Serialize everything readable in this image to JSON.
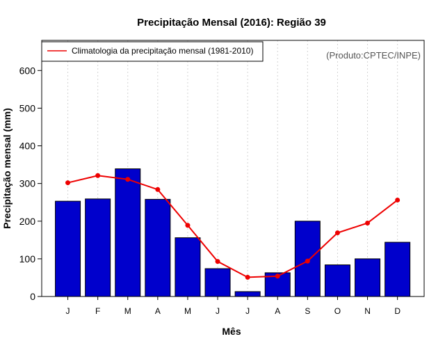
{
  "chart_data": {
    "type": "bar",
    "title": "Precipitação Mensal (2016): Região 39",
    "xlabel": "Mês",
    "ylabel": "Precipitação mensal (mm)",
    "ylim": [
      0,
      680
    ],
    "yticks": [
      0,
      100,
      200,
      300,
      400,
      500,
      600
    ],
    "categories": [
      "J",
      "F",
      "M",
      "A",
      "M",
      "J",
      "J",
      "A",
      "S",
      "O",
      "N",
      "D"
    ],
    "series": [
      {
        "name": "Precipitação mensal (2016)",
        "type": "bar",
        "color": "#0000CC",
        "values": [
          253,
          259,
          339,
          258,
          156,
          74,
          13,
          63,
          200,
          84,
          100,
          144
        ]
      },
      {
        "name": "Climatologia da precipitação mensal (1981-2010)",
        "type": "line",
        "color": "#EE0000",
        "values": [
          302,
          321,
          311,
          284,
          189,
          93,
          51,
          54,
          94,
          169,
          195,
          256
        ]
      }
    ],
    "legend": {
      "entries": [
        "Climatologia da precipitação mensal (1981-2010)"
      ],
      "position": "top-left"
    },
    "annotation": "(Produto:CPTEC/INPE)",
    "grid": "vertical dotted"
  }
}
